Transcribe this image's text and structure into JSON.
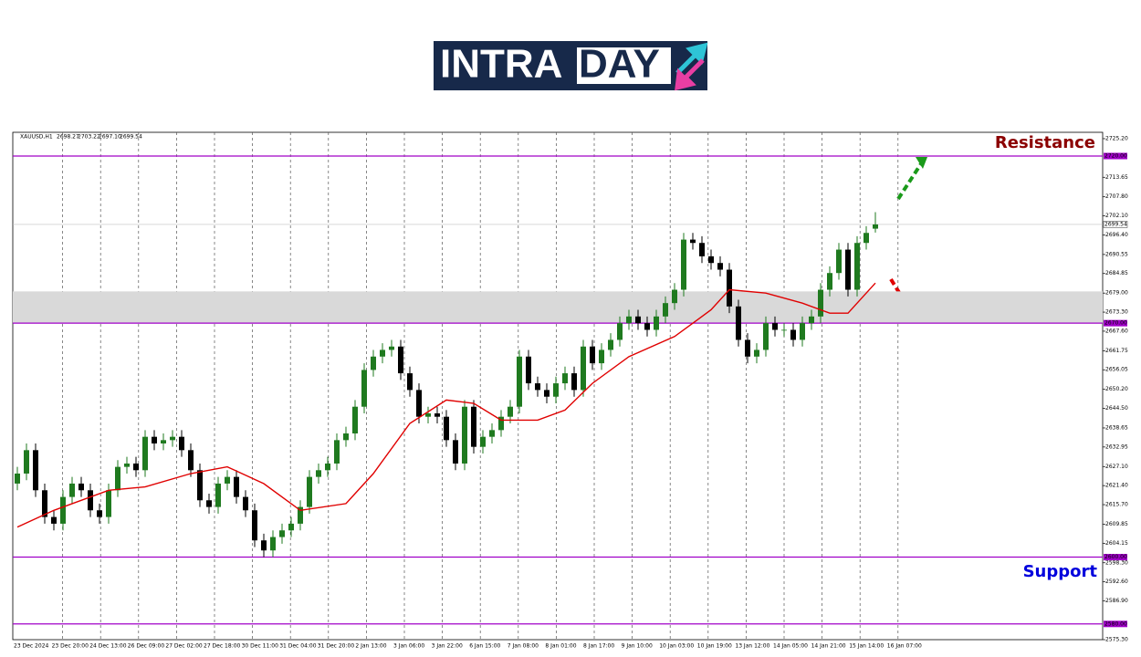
{
  "logo": [
    "INTRA",
    "DAY"
  ],
  "chart_data": {
    "type": "candlestick",
    "symbol": "XAUUSD,H1",
    "quote": [
      "2698.27",
      "2703.22",
      "2697.10",
      "2699.54"
    ],
    "resistance_text": "Resistance",
    "support_text": "Support",
    "bull_color": "#1f7a1f",
    "bear_color": "#000000",
    "xlim": [
      -0.5,
      118.9
    ],
    "ylim": [
      2575.3,
      2727.1
    ],
    "yticks": [
      {
        "value": 2725.2,
        "label": "2725.20"
      },
      2713.65,
      {
        "value": 2707.8,
        "label": "2707.80"
      },
      {
        "value": 2702.1,
        "label": "2702.10"
      },
      {
        "value": 2696.4,
        "label": "2696.40"
      },
      2690.55,
      2684.85,
      {
        "value": 2679,
        "label": "2679.00"
      },
      {
        "value": 2673.3,
        "label": "2673.30"
      },
      {
        "value": 2667.6,
        "label": "2667.60"
      },
      2661.75,
      2656.05,
      {
        "value": 2650.2,
        "label": "2650.20"
      },
      {
        "value": 2644.5,
        "label": "2644.50"
      },
      2638.65,
      2632.95,
      {
        "value": 2627.1,
        "label": "2627.10"
      },
      {
        "value": 2621.4,
        "label": "2621.40"
      },
      {
        "value": 2615.7,
        "label": "2615.70"
      },
      2609.85,
      2604.15,
      {
        "value": 2598.3,
        "label": "2598.30"
      },
      {
        "value": 2592.6,
        "label": "2592.60"
      },
      {
        "value": 2586.9,
        "label": "2586.90"
      },
      {
        "value": 2575.3,
        "label": "2575.30"
      }
    ],
    "time_labels": [
      "23 Dec 2024",
      "23 Dec 20:00",
      "24 Dec 13:00",
      "26 Dec 09:00",
      "27 Dec 02:00",
      "27 Dec 18:00",
      "30 Dec 11:00",
      "31 Dec 04:00",
      "31 Dec 20:00",
      "2 Jan 13:00",
      "3 Jan 06:00",
      "3 Jan 22:00",
      "6 Jan 15:00",
      "7 Jan 08:00",
      "8 Jan 01:00",
      "8 Jan 17:00",
      "9 Jan 10:00",
      "10 Jan 03:00",
      "10 Jan 19:00",
      "13 Jan 12:00",
      "14 Jan 05:00",
      "14 Jan 21:00",
      "15 Jan 14:00",
      "16 Jan 07:00"
    ],
    "zone": [
      2670,
      2679.5
    ],
    "levels": [
      {
        "value": 2720,
        "label": "2720.00",
        "color": "#a000c8"
      },
      {
        "value": 2670,
        "label": "2670.00",
        "color": "#a000c8"
      },
      {
        "value": 2600,
        "label": "2600.00",
        "color": "#a000c8"
      },
      {
        "value": 2580,
        "label": "2580.00",
        "color": "#a000c8"
      },
      {
        "value": 2699.54,
        "label": "2699.54",
        "color": "#c0c0c0"
      }
    ],
    "open": [
      2622,
      2625,
      2632,
      2620,
      2612,
      2610,
      2618,
      2622,
      2620,
      2614,
      2612,
      2620,
      2627,
      2628,
      2626,
      2636,
      2634,
      2635,
      2636,
      2632,
      2626,
      2617,
      2615,
      2622,
      2624,
      2618,
      2614,
      2605,
      2602,
      2606,
      2608,
      2610,
      2615,
      2624,
      2626,
      2628,
      2635,
      2637,
      2645,
      2656,
      2660,
      2662,
      2663,
      2655,
      2650,
      2642,
      2643,
      2642,
      2635,
      2628,
      2645,
      2633,
      2636,
      2638,
      2642,
      2645,
      2660,
      2652,
      2650,
      2648,
      2652,
      2655,
      2650,
      2663,
      2658,
      2662,
      2665,
      2670,
      2672,
      2670,
      2668,
      2672,
      2676,
      2680,
      2695,
      2694,
      2690,
      2688,
      2686,
      2675,
      2665,
      2660,
      2662,
      2670,
      2668,
      2668,
      2665,
      2670,
      2672,
      2680,
      2685,
      2692,
      2680,
      2694,
      2698.27
    ],
    "high": [
      2627,
      2634,
      2634,
      2622,
      2614,
      2620,
      2624,
      2624,
      2622,
      2616,
      2622,
      2629,
      2630,
      2630,
      2638,
      2638,
      2637,
      2638,
      2638,
      2634,
      2628,
      2619,
      2624,
      2626,
      2626,
      2620,
      2616,
      2607,
      2608,
      2610,
      2612,
      2617,
      2626,
      2628,
      2630,
      2637,
      2639,
      2647,
      2658,
      2662,
      2664,
      2665,
      2665,
      2657,
      2652,
      2645,
      2645,
      2644,
      2637,
      2647,
      2647,
      2638,
      2640,
      2644,
      2647,
      2662,
      2662,
      2654,
      2652,
      2654,
      2657,
      2657,
      2665,
      2665,
      2664,
      2667,
      2672,
      2674,
      2674,
      2672,
      2674,
      2678,
      2682,
      2697,
      2697,
      2696,
      2692,
      2690,
      2688,
      2677,
      2667,
      2664,
      2672,
      2672,
      2670,
      2670,
      2672,
      2674,
      2682,
      2687,
      2694,
      2694,
      2696,
      2699,
      2703.22
    ],
    "low": [
      2620,
      2623,
      2618,
      2610,
      2608,
      2608,
      2616,
      2618,
      2612,
      2610,
      2610,
      2618,
      2625,
      2624,
      2624,
      2632,
      2632,
      2633,
      2630,
      2624,
      2615,
      2613,
      2613,
      2620,
      2616,
      2612,
      2603,
      2600,
      2600,
      2604,
      2606,
      2608,
      2613,
      2622,
      2624,
      2626,
      2633,
      2635,
      2643,
      2654,
      2658,
      2660,
      2653,
      2648,
      2640,
      2640,
      2640,
      2633,
      2626,
      2626,
      2631,
      2631,
      2634,
      2636,
      2640,
      2643,
      2650,
      2648,
      2646,
      2646,
      2650,
      2648,
      2648,
      2656,
      2656,
      2660,
      2663,
      2668,
      2668,
      2666,
      2666,
      2670,
      2674,
      2678,
      2692,
      2688,
      2686,
      2684,
      2673,
      2663,
      2658,
      2658,
      2660,
      2666,
      2666,
      2663,
      2663,
      2668,
      2670,
      2678,
      2683,
      2678,
      2678,
      2692,
      2697.1
    ],
    "close": [
      2625,
      2632,
      2620,
      2612,
      2610,
      2618,
      2622,
      2620,
      2614,
      2612,
      2620,
      2627,
      2628,
      2626,
      2636,
      2634,
      2635,
      2636,
      2632,
      2626,
      2617,
      2615,
      2622,
      2624,
      2618,
      2614,
      2605,
      2602,
      2606,
      2608,
      2610,
      2615,
      2624,
      2626,
      2628,
      2635,
      2637,
      2645,
      2656,
      2660,
      2662,
      2663,
      2655,
      2650,
      2642,
      2643,
      2642,
      2635,
      2628,
      2645,
      2633,
      2636,
      2638,
      2642,
      2645,
      2660,
      2652,
      2650,
      2648,
      2652,
      2655,
      2650,
      2663,
      2658,
      2662,
      2665,
      2670,
      2672,
      2670,
      2668,
      2672,
      2676,
      2680,
      2695,
      2694,
      2690,
      2688,
      2686,
      2675,
      2665,
      2660,
      2662,
      2670,
      2668,
      2668,
      2665,
      2670,
      2672,
      2680,
      2685,
      2692,
      2680,
      2694,
      2697,
      2699.54
    ],
    "ma": {
      "color": "#e00000",
      "x": [
        0,
        4,
        10,
        14,
        19,
        23,
        27,
        31,
        36,
        39,
        43,
        47,
        50,
        53,
        57,
        60,
        63,
        67,
        72,
        76,
        78,
        82,
        86,
        89,
        91,
        94
      ],
      "values": [
        2609,
        2614,
        2620,
        2621,
        2625,
        2627,
        2622,
        2614,
        2616,
        2625,
        2640,
        2647,
        2646,
        2641,
        2641,
        2644,
        2652,
        2660,
        2666,
        2674,
        2680,
        2679,
        2676,
        2673,
        2673,
        2682
      ]
    }
  }
}
